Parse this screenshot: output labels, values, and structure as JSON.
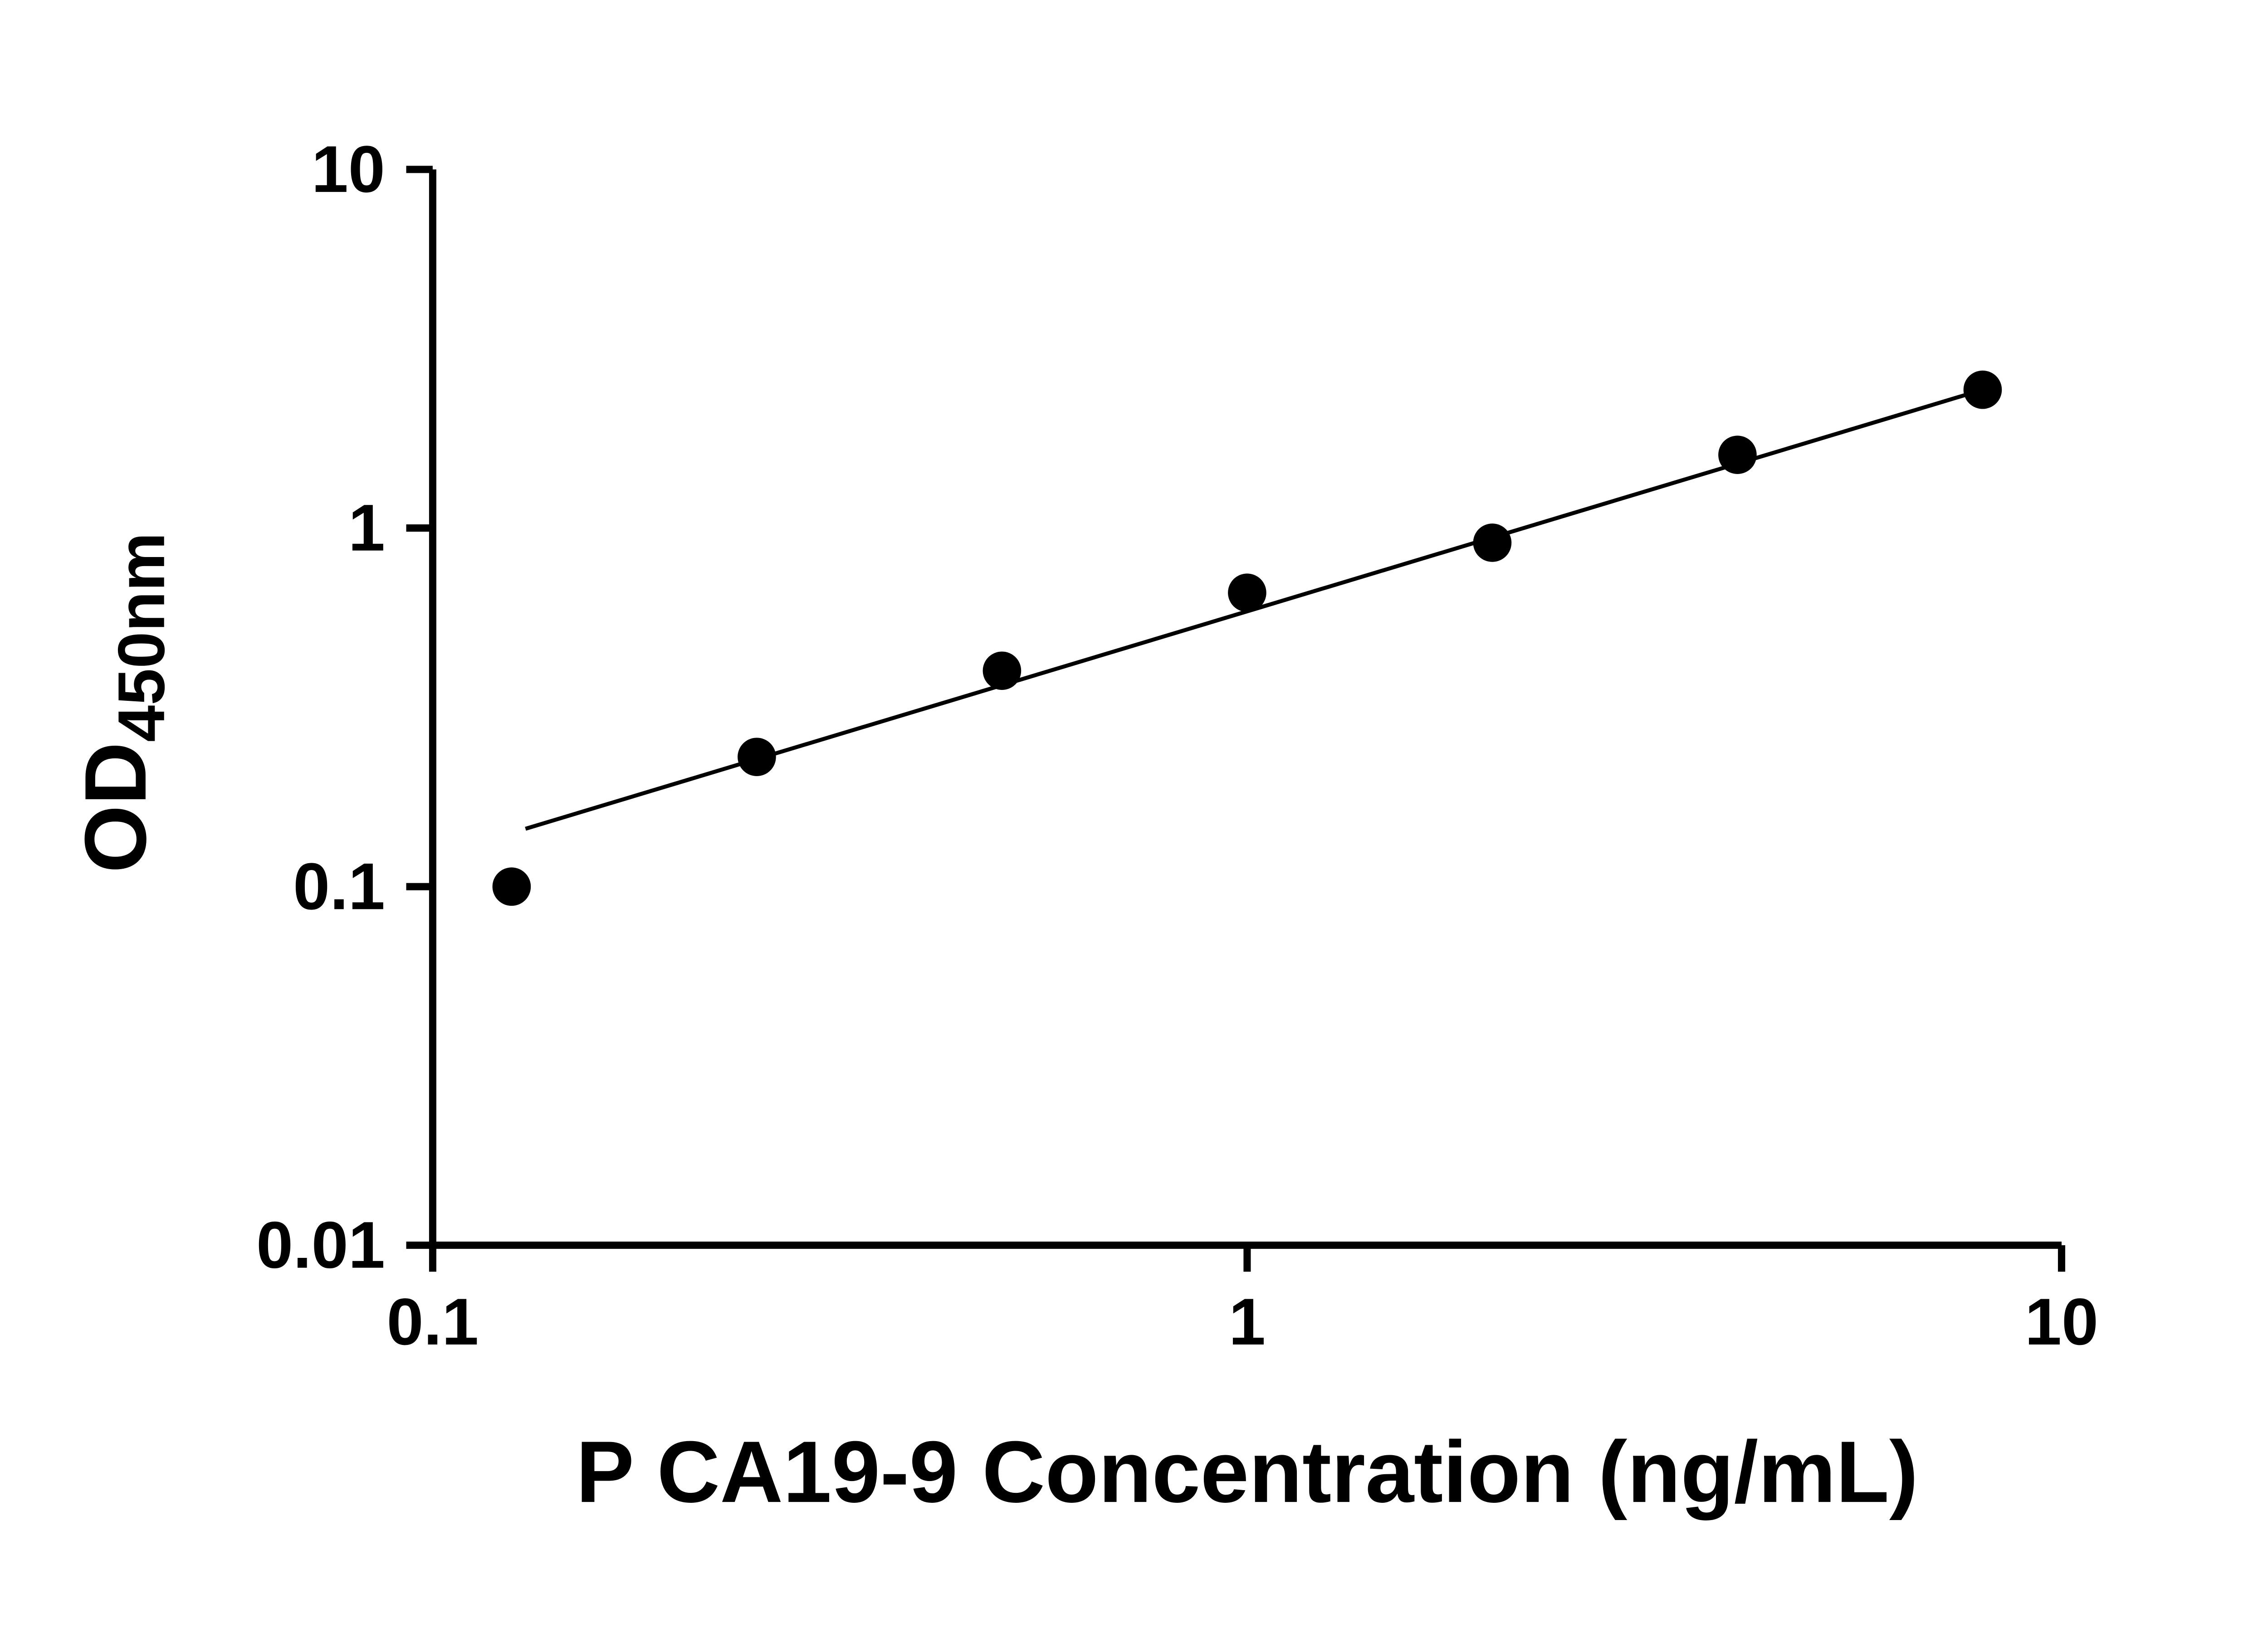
{
  "chart_data": {
    "type": "scatter",
    "title": "",
    "xlabel": "P CA19-9 Concentration (ng/mL)",
    "ylabel": "OD",
    "ylabel_subscript": "450nm",
    "x_scale": "log",
    "y_scale": "log",
    "xlim": [
      0.1,
      10
    ],
    "ylim": [
      0.01,
      10
    ],
    "x_ticks": [
      0.1,
      1,
      10
    ],
    "x_tick_labels": [
      "0.1",
      "1",
      "10"
    ],
    "y_ticks": [
      0.01,
      0.1,
      1,
      10
    ],
    "y_tick_labels": [
      "0.01",
      "0.1",
      "1",
      "10"
    ],
    "grid": false,
    "legend": false,
    "series": [
      {
        "name": "standard-curve-fit",
        "type": "line",
        "x": [
          0.13,
          8
        ],
        "y": [
          0.145,
          2.43
        ],
        "color": "#000000"
      },
      {
        "name": "standard-curve-points",
        "type": "scatter",
        "marker": "circle",
        "x": [
          0.125,
          0.25,
          0.5,
          1,
          2,
          4,
          8
        ],
        "y": [
          0.1,
          0.23,
          0.4,
          0.66,
          0.91,
          1.6,
          2.43
        ],
        "color": "#000000"
      }
    ],
    "colors": {
      "foreground": "#000000",
      "background": "#ffffff"
    }
  }
}
